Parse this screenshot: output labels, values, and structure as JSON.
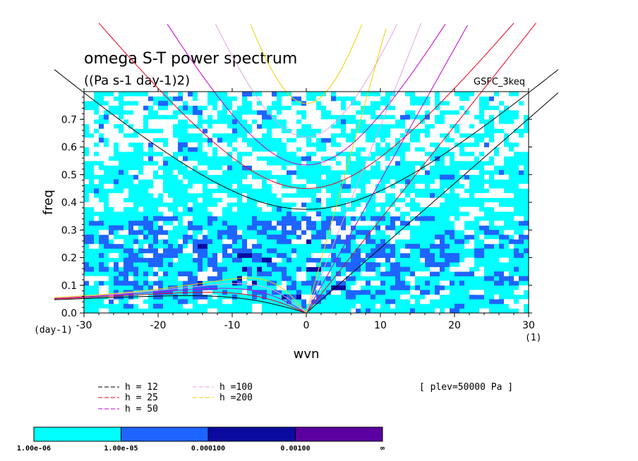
{
  "chart_data": {
    "type": "heatmap",
    "title": "omega S-T power spectrum",
    "subtitle": "((Pa s-1 day-1)2)",
    "model_label": "GSFC_3keq",
    "xlabel": "wvn",
    "ylabel": "freq",
    "y_unit": "(day-1)",
    "x_unit": "(1)",
    "xlim": [
      -30,
      30
    ],
    "ylim": [
      0.0,
      0.8
    ],
    "x_ticks": [
      "-30",
      "-20",
      "-10",
      "0",
      "10",
      "20",
      "30"
    ],
    "y_ticks": [
      "0.0",
      "0.1",
      "0.2",
      "0.3",
      "0.4",
      "0.5",
      "0.6",
      "0.7"
    ],
    "level_note": "[ plev=50000 Pa ]",
    "legend": [
      {
        "label": "h = 12",
        "color": "#000000"
      },
      {
        "label": "h = 25",
        "color": "#e8001c"
      },
      {
        "label": "h = 50",
        "color": "#c000d0"
      },
      {
        "label": "h =100",
        "color": "#e8a0e0"
      },
      {
        "label": "h =200",
        "color": "#f0d000"
      }
    ],
    "colorbar": {
      "labels": [
        "1.00e-06",
        "1.00e-05",
        "0.000100",
        "0.00100",
        "∞"
      ],
      "colors": [
        "#00ffff",
        "#1e64ff",
        "#0a0aa0",
        "#5a00a0"
      ]
    },
    "field_levels_freq": [
      0.0,
      0.1,
      0.2,
      0.3,
      0.4,
      0.5,
      0.6,
      0.7,
      0.8
    ],
    "note": "power field: mostly 1e-6..1e-5 (cyan), 1e-5..1e-4 (blue) concentrated at freq < 0.35 near wvn -20..10, white (< 1e-6) scattered"
  },
  "colors": {
    "white": "#ffffff",
    "cyan": "#00ffff",
    "blue": "#1e64ff",
    "navy": "#0a0aa0"
  }
}
